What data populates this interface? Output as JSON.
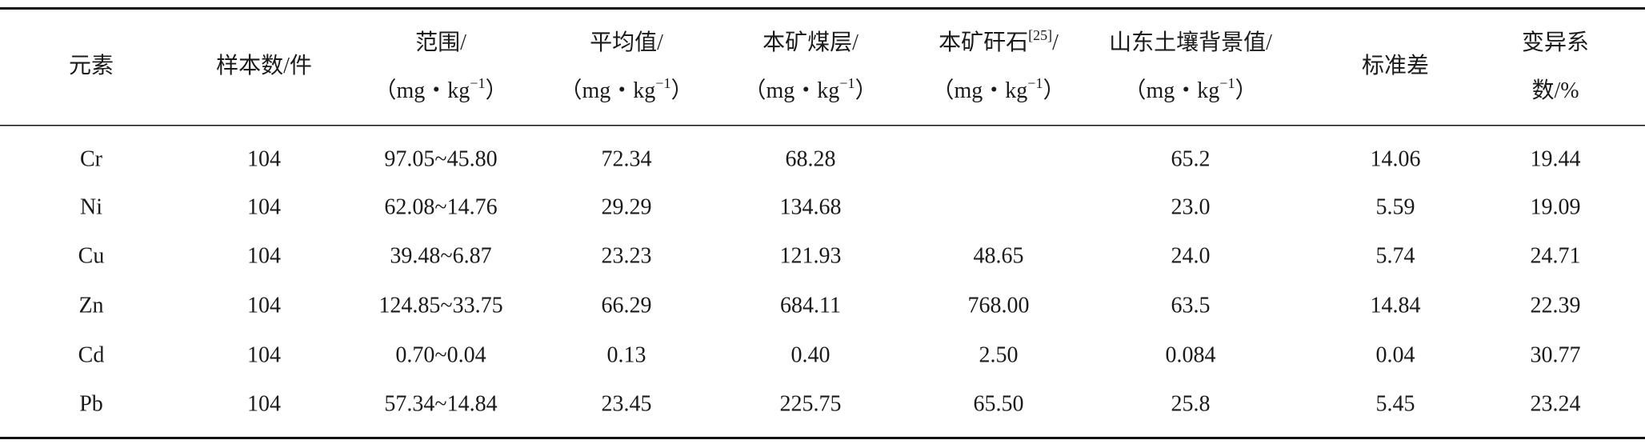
{
  "table": {
    "columns": [
      {
        "lines": [
          [
            {
              "text": "元素"
            }
          ]
        ]
      },
      {
        "lines": [
          [
            {
              "text": "样本数/件"
            }
          ]
        ]
      },
      {
        "lines": [
          [
            {
              "text": "范围/"
            }
          ],
          [
            {
              "text": "（mg・kg"
            },
            {
              "text": "−1",
              "sup": true
            },
            {
              "text": "）"
            }
          ]
        ]
      },
      {
        "lines": [
          [
            {
              "text": "平均值/"
            }
          ],
          [
            {
              "text": "（mg・kg"
            },
            {
              "text": "−1",
              "sup": true
            },
            {
              "text": "）"
            }
          ]
        ]
      },
      {
        "lines": [
          [
            {
              "text": "本矿煤层/"
            }
          ],
          [
            {
              "text": "（mg・kg"
            },
            {
              "text": "−1",
              "sup": true
            },
            {
              "text": "）"
            }
          ]
        ]
      },
      {
        "lines": [
          [
            {
              "text": "本矿矸石"
            },
            {
              "text": "[25]",
              "sup": true
            },
            {
              "text": "/"
            }
          ],
          [
            {
              "text": "（mg・kg"
            },
            {
              "text": "−1",
              "sup": true
            },
            {
              "text": "）"
            }
          ]
        ]
      },
      {
        "lines": [
          [
            {
              "text": "山东土壤背景值/"
            }
          ],
          [
            {
              "text": "（mg・kg"
            },
            {
              "text": "−1",
              "sup": true
            },
            {
              "text": "）"
            }
          ]
        ]
      },
      {
        "lines": [
          [
            {
              "text": "标准差"
            }
          ]
        ]
      },
      {
        "lines": [
          [
            {
              "text": "变异系"
            }
          ],
          [
            {
              "text": "数/%"
            }
          ]
        ]
      }
    ],
    "rows": [
      [
        "Cr",
        "104",
        "97.05~45.80",
        "72.34",
        "68.28",
        null,
        "65.2",
        "14.06",
        "19.44"
      ],
      [
        "Ni",
        "104",
        "62.08~14.76",
        "29.29",
        "134.68",
        null,
        "23.0",
        "5.59",
        "19.09"
      ],
      [
        "Cu",
        "104",
        "39.48~6.87",
        "23.23",
        "121.93",
        "48.65",
        "24.0",
        "5.74",
        "24.71"
      ],
      [
        "Zn",
        "104",
        "124.85~33.75",
        "66.29",
        "684.11",
        "768.00",
        "63.5",
        "14.84",
        "22.39"
      ],
      [
        "Cd",
        "104",
        "0.70~0.04",
        "0.13",
        "0.40",
        "2.50",
        "0.084",
        "0.04",
        "30.77"
      ],
      [
        "Pb",
        "104",
        "57.34~14.84",
        "23.45",
        "225.75",
        "65.50",
        "25.8",
        "5.45",
        "23.24"
      ]
    ]
  }
}
